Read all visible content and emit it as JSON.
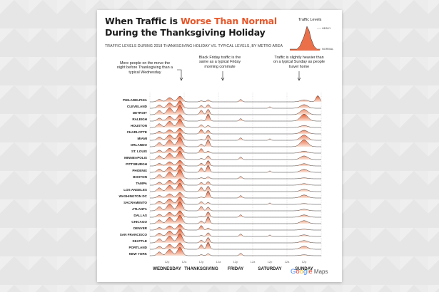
{
  "title_before": "When Traffic is ",
  "title_highlight": "Worse Than Normal",
  "title_after": "During the Thanksgiving Holiday",
  "subtitle": "TRAFFIC LEVELS DURING 2018 THANKSGIVING HOLIDAY VS. TYPICAL LEVELS, BY METRO AREA",
  "legend": {
    "title": "Traffic Levels",
    "heavy": "HEAVY",
    "normal": "NORMAL"
  },
  "annotations": {
    "left": [
      "More people on the move the",
      "night before Thanksgiving than a",
      "typical Wednesday"
    ],
    "mid": [
      "Black Friday traffic is the",
      "same as a typical Friday",
      "morning commute"
    ],
    "right": [
      "Traffic is slightly heavier than",
      "on a typical Sunday as people",
      "travel home"
    ]
  },
  "brand": {
    "google": "Google",
    "maps": " Maps"
  },
  "colors": {
    "accent": "#e8572a",
    "fill_light": "#fbe3d6",
    "stroke": "#2a2a2a"
  },
  "chart_data": {
    "type": "area",
    "description_units": "traffic level relative to typical (0 = normal, 1 = heavy)",
    "days": [
      "WEDNESDAY",
      "THANKSGIVING",
      "FRIDAY",
      "SATURDAY",
      "SUNDAY"
    ],
    "tick_labels": [
      "12p",
      "12a",
      "12p",
      "12a",
      "12p",
      "12a",
      "12p",
      "12a",
      "12p"
    ],
    "cities": [
      "PHILADELPHIA",
      "CLEVELAND",
      "DETROIT",
      "RALEIGH",
      "HOUSTON",
      "CHARLOTTE",
      "MIAMI",
      "ORLANDO",
      "ST. LOUIS",
      "MINNEAPOLIS",
      "PITTSBURGH",
      "PHOENIX",
      "BOSTON",
      "TAMPA",
      "LOS ANGELES",
      "WASHINGTON DC",
      "SACRAMENTO",
      "ATLANTA",
      "DALLAS",
      "CHICAGO",
      "DENVER",
      "SAN FRANCISCO",
      "SEATTLE",
      "PORTLAND",
      "NEW YORK"
    ]
  }
}
